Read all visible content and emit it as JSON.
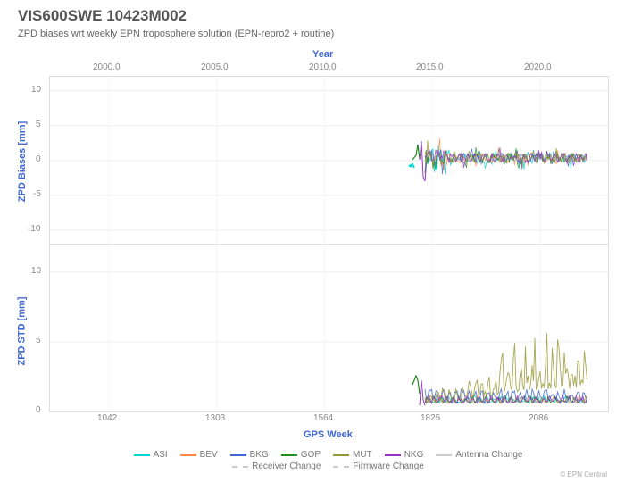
{
  "title": "VIS600SWE 10423M002",
  "subtitle": "ZPD biases wrt weekly EPN troposphere solution (EPN-repro2 + routine)",
  "top_axis": {
    "label": "Year",
    "ticks": [
      "2000.0",
      "2005.0",
      "2010.0",
      "2015.0",
      "2020.0"
    ]
  },
  "bottom_axis": {
    "label": "GPS Week",
    "ticks": [
      "1042",
      "1303",
      "1564",
      "1825",
      "2086"
    ]
  },
  "panel1": {
    "ylabel": "ZPD Biases [mm]",
    "ylim": [
      -12,
      12
    ],
    "yticks": [
      -10,
      -5,
      0,
      5,
      10
    ]
  },
  "panel2": {
    "ylabel": "ZPD STD [mm]",
    "ylim": [
      0,
      12
    ],
    "yticks": [
      0,
      5,
      10
    ]
  },
  "xlim": [
    900,
    2250
  ],
  "data_start": 1790,
  "data_end": 2200,
  "series": {
    "ASI": {
      "color": "#00d4d4"
    },
    "BEV": {
      "color": "#ff8c42"
    },
    "BKG": {
      "color": "#4169d1"
    },
    "GOP": {
      "color": "#228b22"
    },
    "MUT": {
      "color": "#999933"
    },
    "NKG": {
      "color": "#9933cc"
    }
  },
  "markers": {
    "antenna": {
      "label": "Antenna Change",
      "color": "#cccccc",
      "style": "solid"
    },
    "receiver": {
      "label": "Receiver Change",
      "color": "#cccccc",
      "style": "dashed"
    },
    "firmware": {
      "label": "Firmware Change",
      "color": "#cccccc",
      "style": "dashed"
    }
  },
  "credit": "© EPN Central",
  "background_color": "#ffffff",
  "grid_color": "#eeeeee"
}
